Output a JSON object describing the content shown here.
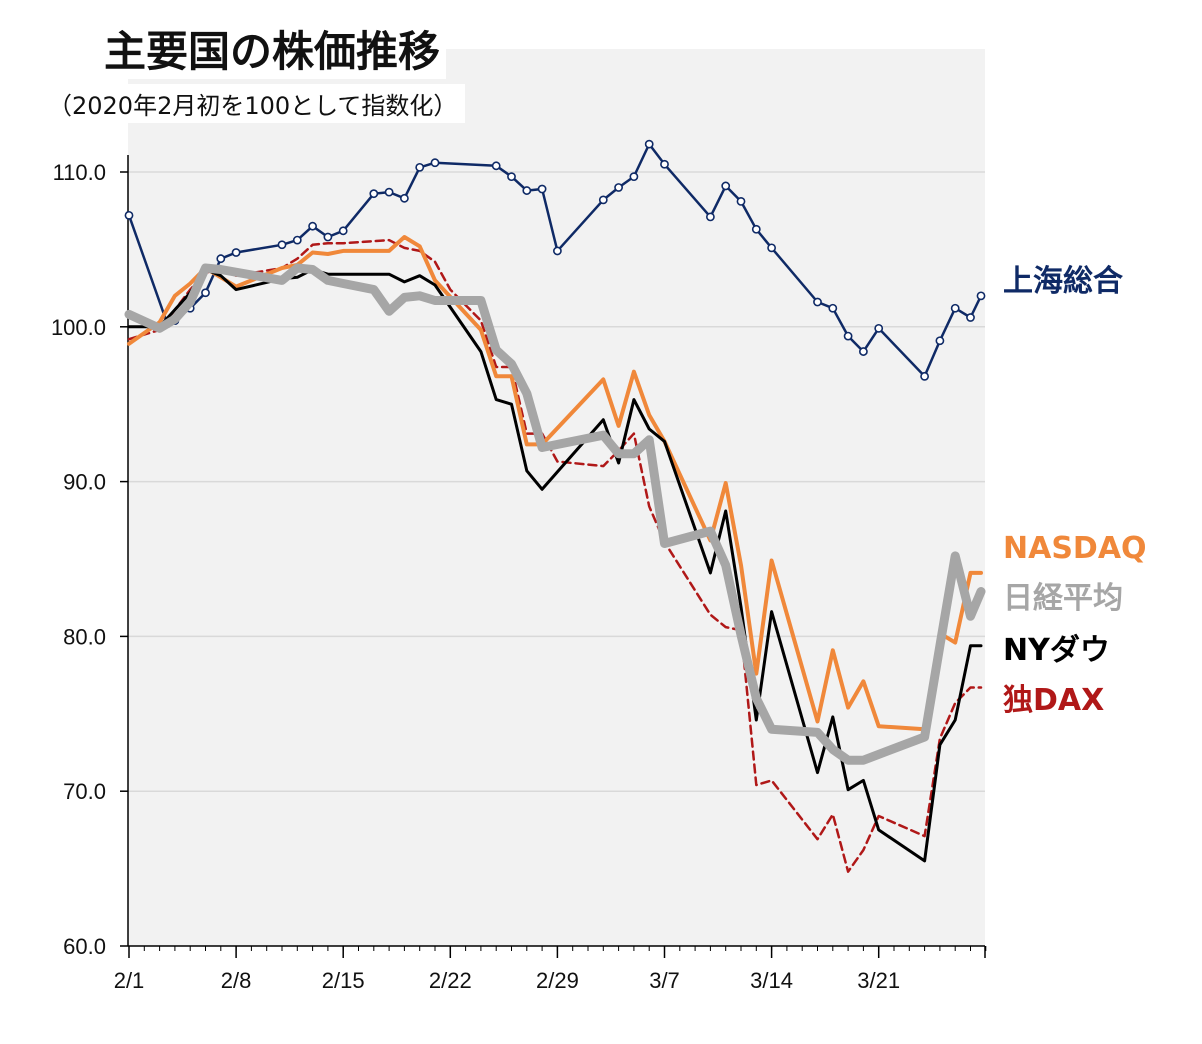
{
  "chart_data": {
    "type": "line",
    "title": "主要国の株価推移",
    "subtitle": "（2020年2月初を100として指数化）",
    "ylim": [
      60,
      112
    ],
    "y_ticks": [
      "60.0",
      "70.0",
      "80.0",
      "90.0",
      "100.0",
      "110.0"
    ],
    "x_range_days": [
      1,
      56
    ],
    "x_tick_labels": [
      "2/1",
      "2/8",
      "2/15",
      "2/22",
      "2/29",
      "3/7",
      "3/14",
      "3/21"
    ],
    "x_tick_days": [
      1,
      8,
      15,
      22,
      29,
      36,
      43,
      50
    ],
    "grid": true,
    "series": [
      {
        "name": "上海総合",
        "color": "#0f2a66",
        "style": "solid-markers",
        "x": [
          1,
          3.5,
          4,
          5,
          6,
          7,
          8,
          11,
          12,
          13,
          14,
          15,
          17,
          18,
          19,
          20,
          21,
          25,
          26,
          27,
          28,
          29,
          32,
          33,
          34,
          35,
          36,
          39,
          40,
          41,
          42,
          43,
          46,
          47,
          48,
          49,
          50,
          53,
          54,
          55,
          56,
          57
        ],
        "values": [
          107.2,
          100.2,
          100.4,
          101.2,
          102.2,
          104.4,
          104.8,
          105.3,
          105.6,
          106.5,
          105.8,
          106.2,
          108.6,
          108.7,
          108.3,
          110.3,
          110.6,
          110.4,
          109.7,
          108.8,
          108.9,
          104.9,
          108.2,
          109.0,
          109.7,
          111.8,
          110.5,
          107.1,
          109.1,
          108.1,
          106.3,
          105.1,
          101.6,
          101.2,
          99.4,
          98.4,
          99.9,
          96.8,
          99.1,
          101.2,
          100.6,
          102.0
        ]
      },
      {
        "name": "NASDAQ",
        "color": "#f0883a",
        "style": "solid",
        "x": [
          1,
          3,
          4,
          5,
          6,
          7,
          8,
          11,
          12,
          13,
          14,
          15,
          18,
          19,
          20,
          21,
          24,
          25,
          26,
          27,
          28,
          32,
          33,
          34,
          35,
          36,
          39,
          40,
          41,
          42,
          43,
          46,
          47,
          48,
          49,
          50,
          53,
          54,
          55,
          56,
          57
        ],
        "values": [
          98.9,
          100.3,
          102.0,
          102.8,
          103.8,
          103.2,
          102.6,
          103.8,
          104.0,
          104.8,
          104.7,
          104.9,
          104.9,
          105.8,
          105.2,
          103.0,
          99.8,
          96.8,
          96.8,
          92.4,
          92.4,
          96.6,
          93.6,
          97.1,
          94.3,
          92.6,
          86.2,
          89.9,
          84.6,
          77.6,
          84.9,
          74.5,
          79.1,
          75.4,
          77.1,
          74.2,
          74.0,
          80.2,
          79.6,
          84.1,
          84.1
        ]
      },
      {
        "name": "日経平均",
        "color": "#a6a6a6",
        "style": "thick",
        "x": [
          1,
          3,
          4,
          5,
          6,
          7,
          11,
          12,
          13,
          14,
          15,
          17,
          18,
          19,
          20,
          21,
          22,
          24,
          25,
          26,
          27,
          28,
          32,
          33,
          34,
          35,
          36,
          39,
          40,
          41,
          42,
          43,
          46,
          47,
          48,
          49,
          53,
          54,
          55,
          56,
          57
        ],
        "values": [
          100.8,
          99.9,
          100.5,
          101.6,
          103.8,
          103.7,
          103.0,
          103.8,
          103.7,
          103.0,
          102.8,
          102.4,
          101.0,
          101.9,
          102.0,
          101.7,
          101.7,
          101.7,
          98.5,
          97.6,
          95.7,
          92.2,
          93.0,
          91.8,
          91.8,
          92.7,
          86.0,
          86.8,
          84.6,
          80.1,
          76.0,
          74.0,
          73.8,
          72.7,
          72.0,
          72.0,
          73.5,
          79.4,
          85.2,
          81.3,
          82.9
        ]
      },
      {
        "name": "NYダウ",
        "color": "#000000",
        "style": "solid",
        "x": [
          1,
          3,
          4,
          5,
          6,
          7,
          8,
          11,
          12,
          13,
          14,
          15,
          18,
          19,
          20,
          21,
          24,
          25,
          26,
          27,
          28,
          32,
          33,
          34,
          35,
          36,
          39,
          40,
          41,
          42,
          43,
          46,
          47,
          48,
          49,
          50,
          53,
          54,
          55,
          56,
          57
        ],
        "values": [
          100.0,
          100.0,
          101.1,
          102.2,
          103.7,
          103.3,
          102.4,
          103.1,
          103.2,
          103.7,
          103.4,
          103.4,
          103.4,
          102.9,
          103.3,
          102.7,
          98.4,
          95.3,
          95.0,
          90.7,
          89.5,
          94.0,
          91.2,
          95.3,
          93.4,
          92.6,
          84.1,
          88.1,
          81.9,
          74.6,
          81.6,
          71.2,
          74.8,
          70.1,
          70.7,
          67.5,
          65.5,
          73.0,
          74.6,
          79.4,
          79.4
        ]
      },
      {
        "name": "独DAX",
        "color": "#b01818",
        "style": "dashed",
        "x": [
          1,
          3,
          4,
          5,
          6,
          7,
          8,
          11,
          12,
          13,
          14,
          15,
          18,
          19,
          20,
          21,
          22,
          24,
          25,
          26,
          27,
          28,
          29,
          32,
          33,
          34,
          35,
          36,
          39,
          40,
          41,
          42,
          43,
          46,
          47,
          48,
          49,
          50,
          53,
          54,
          55,
          56,
          57
        ],
        "values": [
          99.2,
          99.8,
          101.1,
          102.4,
          103.5,
          103.7,
          103.3,
          103.8,
          104.4,
          105.3,
          105.4,
          105.4,
          105.6,
          105.1,
          104.9,
          104.2,
          102.4,
          100.4,
          97.4,
          97.4,
          93.1,
          93.1,
          91.3,
          91.0,
          92.0,
          93.1,
          88.4,
          86.1,
          81.4,
          80.6,
          80.4,
          70.4,
          70.7,
          66.9,
          68.5,
          64.8,
          66.2,
          68.4,
          67.1,
          73.4,
          75.7,
          76.7,
          76.7
        ]
      }
    ]
  },
  "legend": {
    "shanghai": "上海総合",
    "nasdaq": "NASDAQ",
    "nikkei": "日経平均",
    "nydow": "NYダウ",
    "dax": "独DAX"
  }
}
